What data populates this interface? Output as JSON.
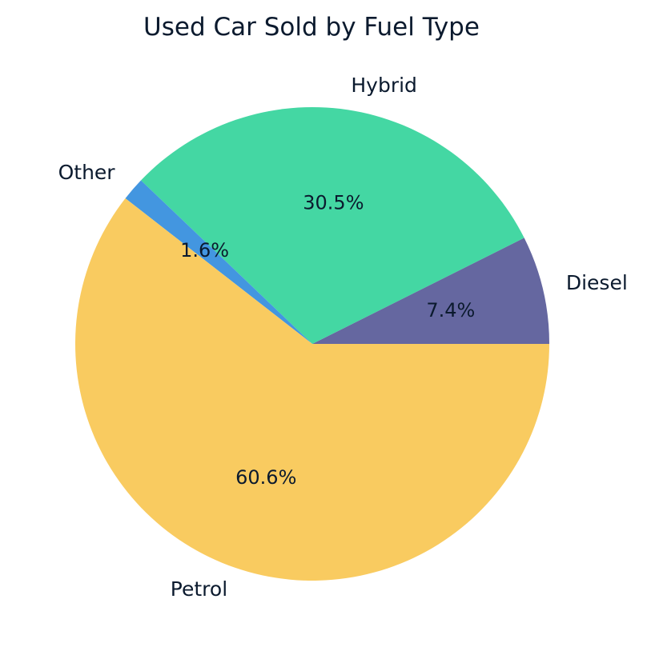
{
  "chart_data": {
    "type": "pie",
    "title": "Used Car Sold by Fuel Type",
    "categories": [
      "Diesel",
      "Hybrid",
      "Other",
      "Petrol"
    ],
    "values": [
      7.4,
      30.5,
      1.6,
      60.6
    ],
    "value_labels": [
      "7.4%",
      "30.5%",
      "1.6%",
      "60.6%"
    ],
    "colors": [
      "#6567a0",
      "#44d7a3",
      "#4396e0",
      "#f9cb60"
    ],
    "start_angle_deg": 0,
    "direction": "counterclockwise",
    "legend": "none"
  }
}
